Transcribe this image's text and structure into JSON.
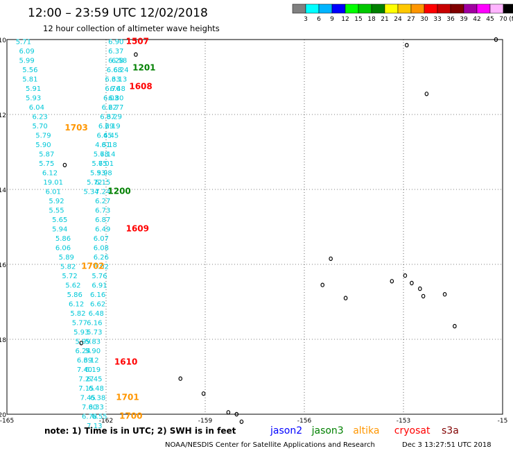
{
  "header": {
    "title": "12:00 – 23:59 UTC 12/02/2018",
    "subtitle": "12 hour collection of altimeter wave heights"
  },
  "color_scale": {
    "colors": [
      "#808080",
      "#00ffff",
      "#00b4ff",
      "#0000ff",
      "#00ff00",
      "#00c800",
      "#008000",
      "#ffff00",
      "#ffc800",
      "#ff9600",
      "#ff0000",
      "#c80000",
      "#800000",
      "#a000a0",
      "#ff00ff",
      "#ffb4ff",
      "#000000"
    ],
    "labels": [
      "3",
      "6",
      "9",
      "12",
      "15",
      "18",
      "21",
      "24",
      "27",
      "30",
      "33",
      "36",
      "39",
      "42",
      "45",
      "70",
      "(ft)"
    ]
  },
  "axes": {
    "lon_ticks": [
      "-165",
      "-162",
      "-159",
      "-156",
      "-153",
      "-15"
    ],
    "lat_ticks": [
      "-10",
      "-12",
      "-14",
      "-16",
      "-18",
      "-20"
    ],
    "lon_range": [
      -165,
      -150
    ],
    "lat_range": [
      -20,
      -10
    ]
  },
  "chart_data": {
    "type": "scatter",
    "measurements": [
      {
        "lon": -164.5,
        "lat": -10.05,
        "swh": "5.71"
      },
      {
        "lon": -164.4,
        "lat": -10.3,
        "swh": "6.09"
      },
      {
        "lon": -164.4,
        "lat": -10.55,
        "swh": "5.99"
      },
      {
        "lon": -164.3,
        "lat": -10.8,
        "swh": "5.56"
      },
      {
        "lon": -164.3,
        "lat": -11.05,
        "swh": "5.81"
      },
      {
        "lon": -164.2,
        "lat": -11.3,
        "swh": "5.91"
      },
      {
        "lon": -164.2,
        "lat": -11.55,
        "swh": "5.93"
      },
      {
        "lon": -164.1,
        "lat": -11.8,
        "swh": "6.04"
      },
      {
        "lon": -164.0,
        "lat": -12.05,
        "swh": "6.23"
      },
      {
        "lon": -164.0,
        "lat": -12.3,
        "swh": "5.70"
      },
      {
        "lon": -163.9,
        "lat": -12.55,
        "swh": "5.79"
      },
      {
        "lon": -163.9,
        "lat": -12.8,
        "swh": "5.90"
      },
      {
        "lon": -163.8,
        "lat": -13.05,
        "swh": "5.87"
      },
      {
        "lon": -163.8,
        "lat": -13.3,
        "swh": "5.75"
      },
      {
        "lon": -163.7,
        "lat": -13.55,
        "swh": "6.12"
      },
      {
        "lon": -163.6,
        "lat": -13.8,
        "swh": "19.01"
      },
      {
        "lon": -163.6,
        "lat": -14.05,
        "swh": "6.01"
      },
      {
        "lon": -163.5,
        "lat": -14.3,
        "swh": "5.92"
      },
      {
        "lon": -163.5,
        "lat": -14.55,
        "swh": "5.55"
      },
      {
        "lon": -163.4,
        "lat": -14.8,
        "swh": "5.65"
      },
      {
        "lon": -163.4,
        "lat": -15.05,
        "swh": "5.94"
      },
      {
        "lon": -163.3,
        "lat": -15.3,
        "swh": "5.86"
      },
      {
        "lon": -163.3,
        "lat": -15.55,
        "swh": "6.06"
      },
      {
        "lon": -163.2,
        "lat": -15.8,
        "swh": "5.89"
      },
      {
        "lon": -163.15,
        "lat": -16.05,
        "swh": "5.82"
      },
      {
        "lon": -163.1,
        "lat": -16.3,
        "swh": "5.72"
      },
      {
        "lon": -163.0,
        "lat": -16.55,
        "swh": "5.62"
      },
      {
        "lon": -162.95,
        "lat": -16.8,
        "swh": "5.86"
      },
      {
        "lon": -162.9,
        "lat": -17.05,
        "swh": "6.12"
      },
      {
        "lon": -162.85,
        "lat": -17.3,
        "swh": "5.82"
      },
      {
        "lon": -162.8,
        "lat": -17.55,
        "swh": "5.77"
      },
      {
        "lon": -162.75,
        "lat": -17.8,
        "swh": "5.93"
      },
      {
        "lon": -162.7,
        "lat": -18.05,
        "swh": "5.99"
      },
      {
        "lon": -162.7,
        "lat": -18.3,
        "swh": "6.24"
      },
      {
        "lon": -162.65,
        "lat": -18.55,
        "swh": "6.39"
      },
      {
        "lon": -162.65,
        "lat": -18.8,
        "swh": "7.40"
      },
      {
        "lon": -162.6,
        "lat": -19.05,
        "swh": "7.27"
      },
      {
        "lon": -162.6,
        "lat": -19.3,
        "swh": "7.15"
      },
      {
        "lon": -162.55,
        "lat": -19.55,
        "swh": "7.45"
      },
      {
        "lon": -162.5,
        "lat": -19.8,
        "swh": "7.80"
      },
      {
        "lon": -162.5,
        "lat": -20.05,
        "swh": "6.78"
      },
      {
        "lon": -161.7,
        "lat": -10.05,
        "swh": "6.90"
      },
      {
        "lon": -161.7,
        "lat": -10.3,
        "swh": "6.37"
      },
      {
        "lon": -161.7,
        "lat": -10.55,
        "swh": "6.28"
      },
      {
        "lon": -161.75,
        "lat": -10.8,
        "swh": "6.68"
      },
      {
        "lon": -161.8,
        "lat": -11.05,
        "swh": "6.33"
      },
      {
        "lon": -161.8,
        "lat": -11.3,
        "swh": "6.76"
      },
      {
        "lon": -161.85,
        "lat": -11.55,
        "swh": "6.03"
      },
      {
        "lon": -161.9,
        "lat": -11.8,
        "swh": "6.22"
      },
      {
        "lon": -161.95,
        "lat": -12.05,
        "swh": "6.37"
      },
      {
        "lon": -162.0,
        "lat": -12.3,
        "swh": "6.29"
      },
      {
        "lon": -162.05,
        "lat": -12.55,
        "swh": "6.45"
      },
      {
        "lon": -162.1,
        "lat": -12.8,
        "swh": "4.81"
      },
      {
        "lon": -162.15,
        "lat": -13.05,
        "swh": "5.78"
      },
      {
        "lon": -162.2,
        "lat": -13.3,
        "swh": "5.75"
      },
      {
        "lon": -162.25,
        "lat": -13.55,
        "swh": "5.93"
      },
      {
        "lon": -162.35,
        "lat": -13.8,
        "swh": "5.72"
      },
      {
        "lon": -162.45,
        "lat": -14.05,
        "swh": "5.34"
      },
      {
        "lon": -161.6,
        "lat": -10.55,
        "swh": "6.58"
      },
      {
        "lon": -161.55,
        "lat": -10.8,
        "swh": "6.24"
      },
      {
        "lon": -161.6,
        "lat": -11.05,
        "swh": "6.13"
      },
      {
        "lon": -161.65,
        "lat": -11.3,
        "swh": "6.48"
      },
      {
        "lon": -161.7,
        "lat": -11.55,
        "swh": "6.80"
      },
      {
        "lon": -161.7,
        "lat": -11.8,
        "swh": "6.77"
      },
      {
        "lon": -161.75,
        "lat": -12.05,
        "swh": "6.29"
      },
      {
        "lon": -161.8,
        "lat": -12.3,
        "swh": "6.19"
      },
      {
        "lon": -161.85,
        "lat": -12.55,
        "swh": "6.45"
      },
      {
        "lon": -161.9,
        "lat": -12.8,
        "swh": "6.18"
      },
      {
        "lon": -161.95,
        "lat": -13.05,
        "swh": "6.14"
      },
      {
        "lon": -162.0,
        "lat": -13.3,
        "swh": "6.01"
      },
      {
        "lon": -162.05,
        "lat": -13.55,
        "swh": "5.98"
      },
      {
        "lon": -162.1,
        "lat": -13.8,
        "swh": "6.15"
      },
      {
        "lon": -162.1,
        "lat": -14.05,
        "swh": "7.24"
      },
      {
        "lon": -162.1,
        "lat": -14.3,
        "swh": "6.27"
      },
      {
        "lon": -162.1,
        "lat": -14.55,
        "swh": "6.73"
      },
      {
        "lon": -162.1,
        "lat": -14.8,
        "swh": "6.87"
      },
      {
        "lon": -162.1,
        "lat": -15.05,
        "swh": "6.49"
      },
      {
        "lon": -162.15,
        "lat": -15.3,
        "swh": "6.07"
      },
      {
        "lon": -162.15,
        "lat": -15.55,
        "swh": "6.08"
      },
      {
        "lon": -162.15,
        "lat": -15.8,
        "swh": "6.26"
      },
      {
        "lon": -162.15,
        "lat": -16.05,
        "swh": "6.02"
      },
      {
        "lon": -162.2,
        "lat": -16.3,
        "swh": "5.76"
      },
      {
        "lon": -162.2,
        "lat": -16.55,
        "swh": "6.91"
      },
      {
        "lon": -162.25,
        "lat": -16.8,
        "swh": "6.16"
      },
      {
        "lon": -162.25,
        "lat": -17.05,
        "swh": "6.62"
      },
      {
        "lon": -162.3,
        "lat": -17.3,
        "swh": "6.48"
      },
      {
        "lon": -162.35,
        "lat": -17.55,
        "swh": "6.16"
      },
      {
        "lon": -162.35,
        "lat": -17.8,
        "swh": "5.73"
      },
      {
        "lon": -162.4,
        "lat": -18.05,
        "swh": "5.83"
      },
      {
        "lon": -162.4,
        "lat": -18.3,
        "swh": "5.90"
      },
      {
        "lon": -162.45,
        "lat": -18.55,
        "swh": "6.12"
      },
      {
        "lon": -162.4,
        "lat": -18.8,
        "swh": "6.19"
      },
      {
        "lon": -162.35,
        "lat": -19.05,
        "swh": "6.45"
      },
      {
        "lon": -162.3,
        "lat": -19.3,
        "swh": "6.48"
      },
      {
        "lon": -162.25,
        "lat": -19.55,
        "swh": "6.38"
      },
      {
        "lon": -162.3,
        "lat": -19.8,
        "swh": "6.33"
      },
      {
        "lon": -162.2,
        "lat": -20.05,
        "swh": "6.55"
      },
      {
        "lon": -162.35,
        "lat": -20.3,
        "swh": "7.13"
      }
    ],
    "track_labels": [
      {
        "lon": -161.4,
        "lat": -10.05,
        "text": "1507",
        "sat": "cryosat"
      },
      {
        "lon": -161.2,
        "lat": -10.75,
        "text": "1201",
        "sat": "jason3"
      },
      {
        "lon": -161.3,
        "lat": -11.25,
        "text": "1608",
        "sat": "cryosat"
      },
      {
        "lon": -163.25,
        "lat": -12.35,
        "text": "1703",
        "sat": "altika"
      },
      {
        "lon": -161.95,
        "lat": -14.05,
        "text": "1200",
        "sat": "jason3"
      },
      {
        "lon": -161.4,
        "lat": -15.05,
        "text": "1609",
        "sat": "cryosat"
      },
      {
        "lon": -162.75,
        "lat": -16.05,
        "text": "1702",
        "sat": "altika"
      },
      {
        "lon": -161.75,
        "lat": -18.6,
        "text": "1610",
        "sat": "cryosat"
      },
      {
        "lon": -161.7,
        "lat": -19.55,
        "text": "1701",
        "sat": "altika"
      },
      {
        "lon": -161.6,
        "lat": -20.05,
        "text": "1700",
        "sat": "altika"
      }
    ],
    "islands": [
      {
        "lon": -161.1,
        "lat": -10.4
      },
      {
        "lon": -163.25,
        "lat": -13.35
      },
      {
        "lon": -162.75,
        "lat": -18.1
      },
      {
        "lon": -159.75,
        "lat": -19.05
      },
      {
        "lon": -159.05,
        "lat": -19.45
      },
      {
        "lon": -158.3,
        "lat": -19.95
      },
      {
        "lon": -158.05,
        "lat": -20.0
      },
      {
        "lon": -157.9,
        "lat": -20.2
      },
      {
        "lon": -152.9,
        "lat": -10.15
      },
      {
        "lon": -152.3,
        "lat": -11.45
      },
      {
        "lon": -155.2,
        "lat": -15.85
      },
      {
        "lon": -155.45,
        "lat": -16.55
      },
      {
        "lon": -154.75,
        "lat": -16.9
      },
      {
        "lon": -153.35,
        "lat": -16.45
      },
      {
        "lon": -152.95,
        "lat": -16.3
      },
      {
        "lon": -152.75,
        "lat": -16.5
      },
      {
        "lon": -152.5,
        "lat": -16.65
      },
      {
        "lon": -152.4,
        "lat": -16.85
      },
      {
        "lon": -151.75,
        "lat": -16.8
      },
      {
        "lon": -151.45,
        "lat": -17.65
      },
      {
        "lon": -150.2,
        "lat": -10.0
      }
    ]
  },
  "footer": {
    "note": "note:  1) Time is in UTC;  2) SWH is in feet",
    "satellites": [
      {
        "name": "jason2",
        "color": "#0000ff"
      },
      {
        "name": "jason3",
        "color": "#008000"
      },
      {
        "name": "altika",
        "color": "#ff9600"
      },
      {
        "name": "cryosat",
        "color": "#ff0000"
      },
      {
        "name": "s3a",
        "color": "#800000"
      }
    ],
    "credit": "NOAA/NESDIS Center for Satellite Applications and Research",
    "timestamp": "Dec  3 13:27:51 UTC 2018"
  },
  "track_colors": {
    "jason2": "#0000ff",
    "jason3": "#008000",
    "altika": "#ff9600",
    "cryosat": "#ff0000",
    "s3a": "#800000"
  }
}
